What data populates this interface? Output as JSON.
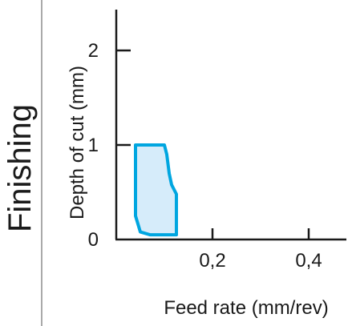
{
  "side_label": "Finishing",
  "colors": {
    "region_fill": "#d6ecfa",
    "region_stroke": "#00a6e0",
    "axis": "#1a1a1a",
    "divider": "#555555"
  },
  "chart_data": {
    "type": "area",
    "title": "",
    "xlabel": "Feed rate (mm/rev)",
    "ylabel": "Depth of cut (mm)",
    "xlim": [
      0,
      0.5
    ],
    "ylim": [
      0,
      2.5
    ],
    "x_ticks": [
      {
        "value": 0.2,
        "label": "0,2"
      },
      {
        "value": 0.4,
        "label": "0,4"
      }
    ],
    "y_ticks": [
      {
        "value": 0,
        "label": "0"
      },
      {
        "value": 1,
        "label": "1"
      },
      {
        "value": 2,
        "label": "2"
      }
    ],
    "grid": false,
    "region": {
      "points": [
        [
          0.04,
          1.0
        ],
        [
          0.1,
          1.0
        ],
        [
          0.105,
          0.9
        ],
        [
          0.11,
          0.7
        ],
        [
          0.115,
          0.58
        ],
        [
          0.125,
          0.48
        ],
        [
          0.125,
          0.05
        ],
        [
          0.07,
          0.05
        ],
        [
          0.05,
          0.08
        ],
        [
          0.04,
          0.25
        ],
        [
          0.04,
          1.0
        ]
      ]
    }
  }
}
